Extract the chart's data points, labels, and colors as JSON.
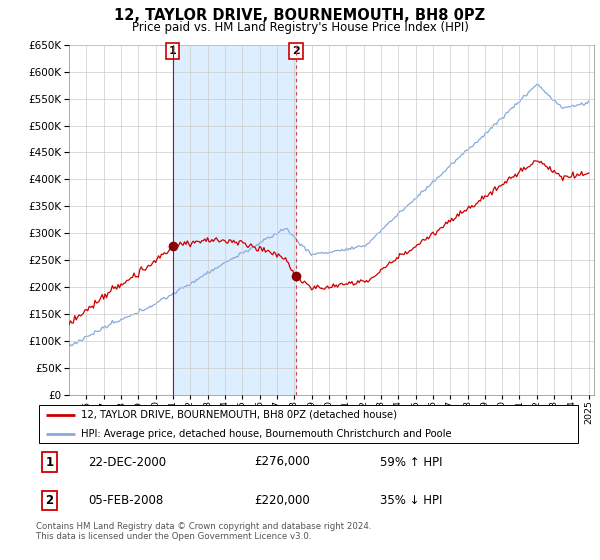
{
  "title": "12, TAYLOR DRIVE, BOURNEMOUTH, BH8 0PZ",
  "subtitle": "Price paid vs. HM Land Registry's House Price Index (HPI)",
  "legend_line1": "12, TAYLOR DRIVE, BOURNEMOUTH, BH8 0PZ (detached house)",
  "legend_line2": "HPI: Average price, detached house, Bournemouth Christchurch and Poole",
  "transaction1_label": "1",
  "transaction1_date": "22-DEC-2000",
  "transaction1_price": 276000,
  "transaction1_pct": "59% ↑ HPI",
  "transaction2_label": "2",
  "transaction2_date": "05-FEB-2008",
  "transaction2_price": 220000,
  "transaction2_pct": "35% ↓ HPI",
  "footer": "Contains HM Land Registry data © Crown copyright and database right 2024.\nThis data is licensed under the Open Government Licence v3.0.",
  "ylim": [
    0,
    650000
  ],
  "ytick_step": 50000,
  "sale_color": "#cc0000",
  "hpi_color": "#88aadd",
  "marker_color": "#880000",
  "vline1_color": "#cc0000",
  "vline2_color": "#cc4444",
  "background_color": "#ffffff",
  "grid_color": "#cccccc",
  "shade_color": "#ddeeff",
  "t1_year": 2000.975,
  "t2_year": 2008.095
}
